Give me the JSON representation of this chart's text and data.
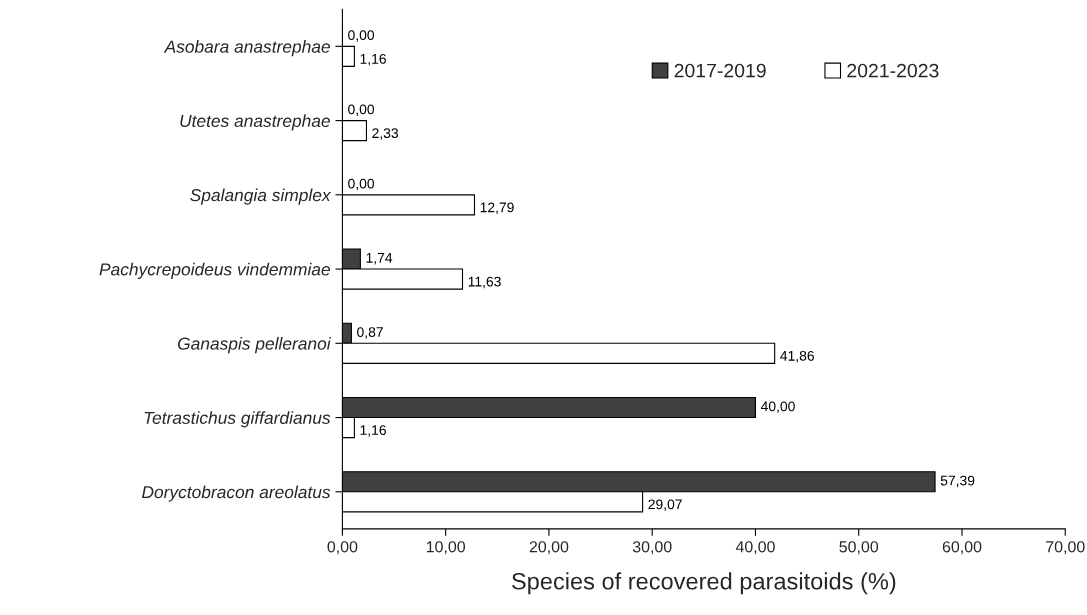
{
  "chart_data": {
    "type": "bar",
    "orientation": "horizontal",
    "xlabel": "Species of recovered parasitoids (%)",
    "categories": [
      "Asobara anastrephae",
      "Utetes anastrephae",
      "Spalangia simplex",
      "Pachycrepoideus vindemmiae",
      "Ganaspis pelleranoi",
      "Tetrastichus giffardianus",
      "Doryctobracon areolatus"
    ],
    "series": [
      {
        "name": "2017-2019",
        "color": "#404040",
        "values": [
          0.0,
          0.0,
          0.0,
          1.74,
          0.87,
          40.0,
          57.39
        ],
        "value_labels": [
          "0,00",
          "0,00",
          "0,00",
          "1,74",
          "0,87",
          "40,00",
          "57,39"
        ]
      },
      {
        "name": "2021-2023",
        "color": "#ffffff",
        "values": [
          1.16,
          2.33,
          12.79,
          11.63,
          41.86,
          1.16,
          29.07
        ],
        "value_labels": [
          "1,16",
          "2,33",
          "12,79",
          "11,63",
          "41,86",
          "1,16",
          "29,07"
        ]
      }
    ],
    "xlim": [
      0,
      70
    ],
    "xticks": [
      {
        "value": 0,
        "label": "0,00"
      },
      {
        "value": 10,
        "label": "10,00"
      },
      {
        "value": 20,
        "label": "20,00"
      },
      {
        "value": 30,
        "label": "30,00"
      },
      {
        "value": 40,
        "label": "40,00"
      },
      {
        "value": 50,
        "label": "50,00"
      },
      {
        "value": 60,
        "label": "60,00"
      },
      {
        "value": 70,
        "label": "70,00"
      }
    ],
    "grid": false,
    "legend": "top right"
  }
}
